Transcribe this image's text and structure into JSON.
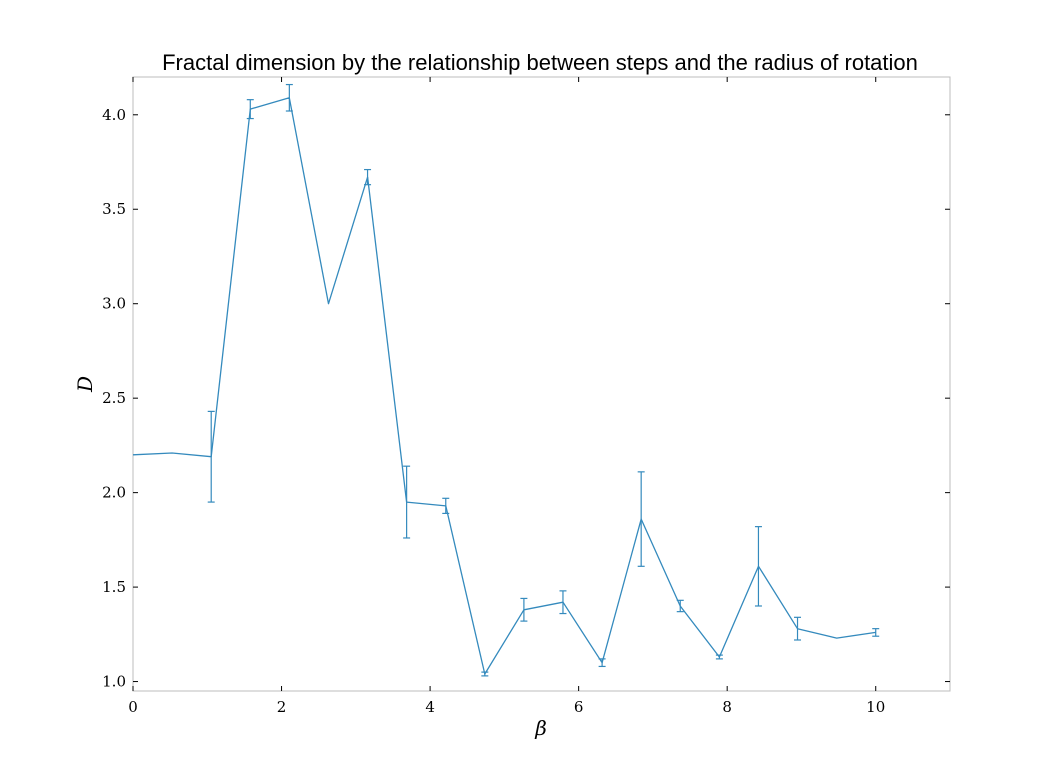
{
  "chart_data": {
    "type": "line",
    "title": "Fractal dimension by the relationship between steps and the radius of rotation",
    "xlabel": "β",
    "ylabel": "D",
    "xlim": [
      0,
      11
    ],
    "ylim": [
      0.95,
      4.2
    ],
    "xticks": [
      0,
      2,
      4,
      6,
      8,
      10
    ],
    "yticks": [
      1.0,
      1.5,
      2.0,
      2.5,
      3.0,
      3.5,
      4.0
    ],
    "xtick_labels": [
      "0",
      "2",
      "4",
      "6",
      "8",
      "10"
    ],
    "ytick_labels": [
      "1.0",
      "1.5",
      "2.0",
      "2.5",
      "3.0",
      "3.5",
      "4.0"
    ],
    "color": "#348abd",
    "series": [
      {
        "name": "D",
        "x": [
          0.0,
          0.526,
          1.053,
          1.579,
          2.105,
          2.632,
          3.158,
          3.684,
          4.211,
          4.737,
          5.263,
          5.789,
          6.316,
          6.842,
          7.368,
          7.895,
          8.421,
          8.947,
          9.474,
          10.0
        ],
        "y": [
          2.2,
          2.21,
          2.19,
          4.03,
          4.09,
          3.0,
          3.67,
          1.95,
          1.93,
          1.04,
          1.38,
          1.42,
          1.1,
          1.86,
          1.4,
          1.13,
          1.61,
          1.28,
          1.23,
          1.26
        ],
        "err": [
          0.0,
          0.0,
          0.24,
          0.05,
          0.07,
          0.0,
          0.04,
          0.19,
          0.04,
          0.01,
          0.06,
          0.06,
          0.02,
          0.25,
          0.03,
          0.01,
          0.21,
          0.06,
          0.0,
          0.02
        ]
      }
    ]
  }
}
